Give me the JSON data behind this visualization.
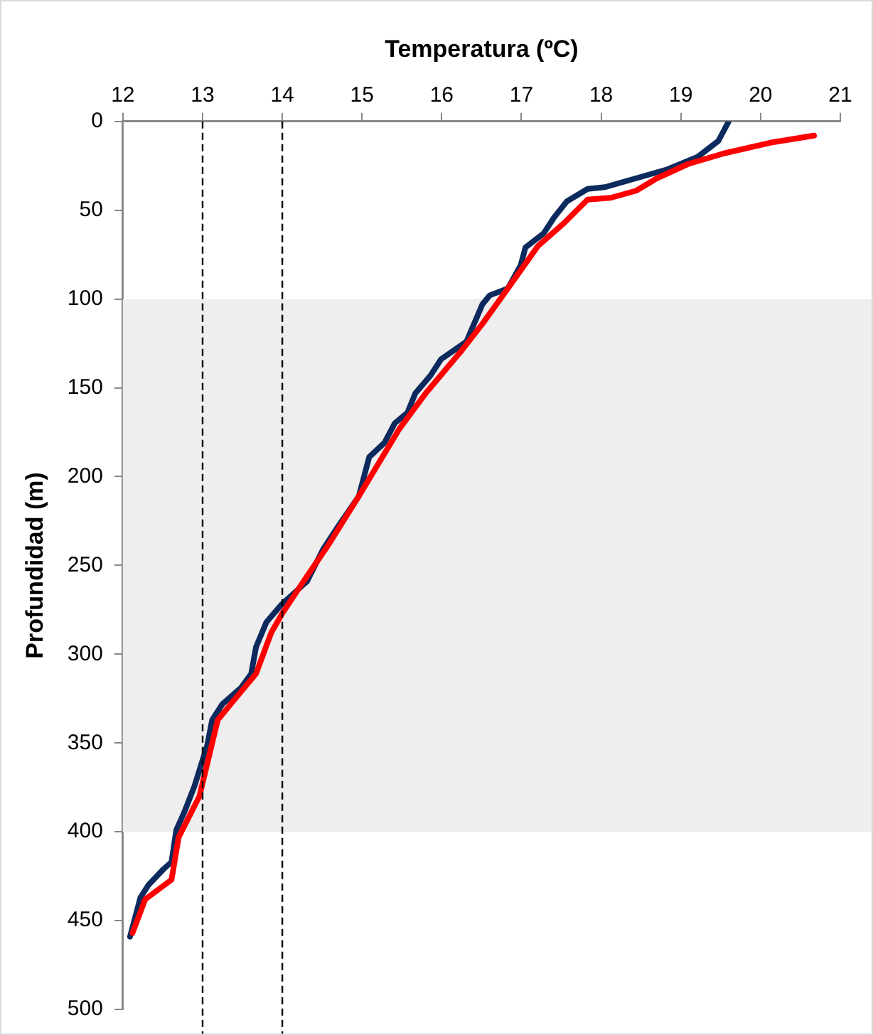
{
  "chart_data": {
    "type": "line",
    "xlabel": "Temperatura (ºC)",
    "ylabel": "Profundidad (m)",
    "xlim": [
      12,
      21
    ],
    "xticks": [
      12,
      13,
      14,
      15,
      16,
      17,
      18,
      19,
      20,
      21
    ],
    "ylim": [
      500,
      0
    ],
    "yticks": [
      0,
      50,
      100,
      150,
      200,
      250,
      300,
      350,
      400,
      450,
      500
    ],
    "grid": false,
    "legend": false,
    "marker": "none",
    "line_style": "solid",
    "bands": [
      {
        "axis": "y",
        "from": 100,
        "to": 400,
        "color": "#eeeeee"
      }
    ],
    "ref_lines": [
      {
        "axis": "x",
        "value": 13,
        "color": "#000000",
        "line_style": "dashed"
      },
      {
        "axis": "x",
        "value": 14,
        "color": "#000000",
        "line_style": "dashed"
      }
    ],
    "series": [
      {
        "color": "#ff0000",
        "x": [
          20.67,
          20.12,
          19.54,
          19.09,
          18.7,
          18.44,
          18.12,
          17.83,
          17.54,
          17.21,
          16.83,
          16.51,
          16.25,
          15.8,
          15.47,
          14.96,
          14.57,
          14.31,
          14,
          13.86,
          13.67,
          13.41,
          13.19,
          12.96,
          12.7,
          12.61,
          12.28,
          12.12
        ],
        "values": [
          8,
          12,
          18,
          24,
          32,
          39,
          43,
          44,
          57,
          70,
          94,
          114,
          129,
          153,
          173,
          211,
          239,
          256,
          277,
          288,
          311,
          325,
          337,
          380,
          403,
          427,
          438,
          457
        ]
      },
      {
        "color": "#0d2a5e",
        "x": [
          19.6,
          19.47,
          19.21,
          18.83,
          18.44,
          18.05,
          17.83,
          17.57,
          17.41,
          17.28,
          17.05,
          16.99,
          16.83,
          16.6,
          16.51,
          16.31,
          15.99,
          15.86,
          15.67,
          15.57,
          15.41,
          15.28,
          15.09,
          14.96,
          14.7,
          14.51,
          14.31,
          13.99,
          13.8,
          13.67,
          13.61,
          13.48,
          13.25,
          13.12,
          13.06,
          12.9,
          12.77,
          12.67,
          12.61,
          12.51,
          12.32,
          12.22,
          12.09
        ],
        "values": [
          0,
          11,
          20,
          27,
          32,
          37,
          38,
          45,
          54,
          63,
          71,
          81,
          94,
          98,
          103,
          124,
          134,
          143,
          153,
          164,
          170,
          181,
          189,
          211,
          228,
          241,
          259,
          272,
          282,
          296,
          311,
          319,
          328,
          337,
          351,
          374,
          389,
          399,
          417,
          421,
          430,
          437,
          459
        ]
      }
    ]
  }
}
